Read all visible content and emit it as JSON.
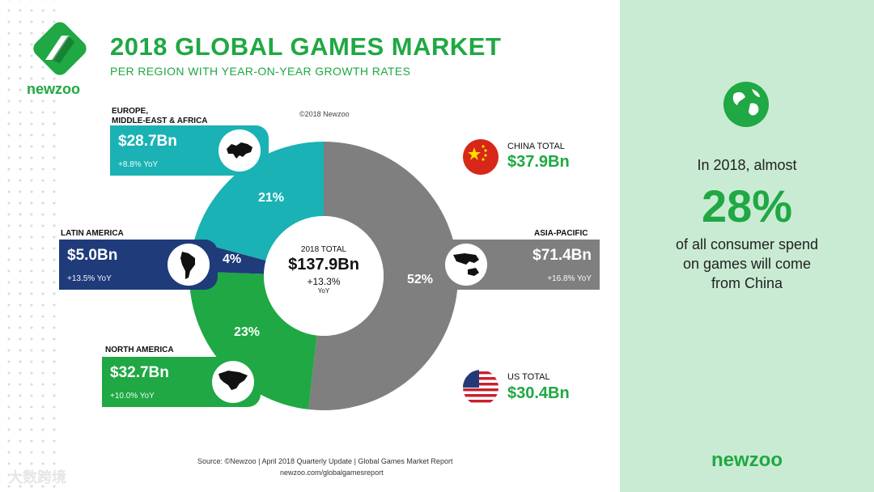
{
  "header": {
    "title": "2018 GLOBAL GAMES MARKET",
    "subtitle": "PER REGION WITH YEAR-ON-YEAR GROWTH RATES",
    "logo_text": "newzoo",
    "copyright": "©2018 Newzoo"
  },
  "chart_data": {
    "type": "pie",
    "style": "donut",
    "total_label": "2018 TOTAL",
    "total_value": "$137.9Bn",
    "total_growth": "+13.3%",
    "total_growth_unit": "YoY",
    "currency_unit": "$ billion",
    "slices": [
      {
        "region": "ASIA-PACIFIC",
        "value": 71.4,
        "value_label": "$71.4Bn",
        "share_label": "52%",
        "yoy": "+16.8% YoY",
        "color": "#7f7f7f"
      },
      {
        "region": "NORTH AMERICA",
        "value": 32.7,
        "value_label": "$32.7Bn",
        "share_label": "23%",
        "yoy": "+10.0% YoY",
        "color": "#1fa843"
      },
      {
        "region": "LATIN AMERICA",
        "value": 5.0,
        "value_label": "$5.0Bn",
        "share_label": "4%",
        "yoy": "+13.5% YoY",
        "color": "#1f3b7a"
      },
      {
        "region": "EUROPE,\nMIDDLE-EAST & AFRICA",
        "value": 28.7,
        "value_label": "$28.7Bn",
        "share_label": "21%",
        "yoy": "+8.8% YoY",
        "color": "#1ab2b4"
      }
    ],
    "country_totals": [
      {
        "label": "CHINA TOTAL",
        "value": 37.9,
        "value_label": "$37.9Bn"
      },
      {
        "label": "US TOTAL",
        "value": 30.4,
        "value_label": "$30.4Bn"
      }
    ]
  },
  "source": {
    "line1": "Source: ©Newzoo | April 2018 Quarterly Update | Global Games Market Report",
    "line2": "newzoo.com/globalgamesreport"
  },
  "side_panel": {
    "intro": "In 2018, almost",
    "big_stat": "28%",
    "description": "of all consumer spend\non games will come\nfrom China",
    "brand": "newzoo"
  },
  "watermark": "大数跨境",
  "colors": {
    "brand_green": "#1fa843",
    "panel_bg": "#c9ebd3",
    "teal": "#1ab2b4",
    "navy": "#1f3b7a",
    "grey": "#7f7f7f"
  }
}
